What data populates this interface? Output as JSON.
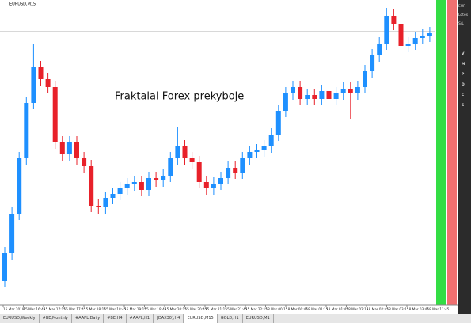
{
  "chart_data": {
    "type": "candlestick",
    "title": "EURUSD,M15",
    "annotation": "Fraktalai Forex prekyboje",
    "ylim": [
      15,
      400
    ],
    "level_line": 360,
    "up_color": "#1e90ff",
    "down_color": "#e8212a",
    "open": [
      45,
      80,
      130,
      200,
      270,
      315,
      300,
      290,
      220,
      205,
      220,
      200,
      190,
      140,
      138,
      150,
      155,
      162,
      167,
      170,
      160,
      175,
      172,
      178,
      200,
      215,
      200,
      195,
      170,
      162,
      168,
      175,
      188,
      182,
      200,
      208,
      210,
      215,
      230,
      260,
      282,
      290,
      275,
      280,
      275,
      285,
      275,
      282,
      288,
      282,
      290,
      310,
      330,
      345,
      380,
      370,
      342,
      345,
      352,
      355
    ],
    "high": [
      88,
      138,
      208,
      278,
      345,
      323,
      308,
      298,
      228,
      228,
      228,
      208,
      198,
      148,
      158,
      163,
      170,
      175,
      178,
      178,
      183,
      183,
      186,
      208,
      240,
      223,
      208,
      203,
      178,
      176,
      183,
      196,
      196,
      208,
      216,
      218,
      223,
      238,
      268,
      290,
      298,
      298,
      288,
      288,
      293,
      293,
      290,
      296,
      296,
      298,
      318,
      338,
      353,
      390,
      388,
      378,
      353,
      360,
      363,
      366
    ],
    "low": [
      37,
      72,
      122,
      192,
      262,
      292,
      282,
      212,
      197,
      197,
      192,
      182,
      132,
      130,
      130,
      142,
      147,
      154,
      159,
      152,
      152,
      164,
      164,
      170,
      192,
      192,
      187,
      162,
      154,
      154,
      160,
      167,
      174,
      174,
      192,
      200,
      202,
      207,
      222,
      252,
      274,
      267,
      267,
      267,
      267,
      267,
      267,
      274,
      250,
      274,
      282,
      302,
      322,
      337,
      362,
      334,
      334,
      337,
      344,
      347
    ],
    "close": [
      80,
      130,
      200,
      270,
      315,
      300,
      290,
      220,
      205,
      220,
      200,
      190,
      140,
      138,
      150,
      155,
      162,
      167,
      170,
      160,
      175,
      172,
      178,
      200,
      215,
      200,
      195,
      170,
      162,
      168,
      175,
      188,
      182,
      200,
      208,
      210,
      215,
      230,
      260,
      282,
      290,
      275,
      280,
      275,
      285,
      275,
      282,
      288,
      282,
      290,
      310,
      330,
      345,
      380,
      370,
      342,
      345,
      352,
      355,
      358
    ],
    "time_labels": [
      "15 Mar 2019",
      "15 Mar 16:45",
      "15 Mar 17:15",
      "15 Mar 17:45",
      "15 Mar 18:15",
      "15 Mar 18:45",
      "15 Mar 19:15",
      "15 Mar 19:45",
      "15 Mar 20:15",
      "15 Mar 20:45",
      "15 Mar 21:15",
      "15 Mar 21:45",
      "15 Mar 22:15",
      "18 Mar 00:15",
      "18 Mar 00:45",
      "18 Mar 01:15",
      "18 Mar 01:45",
      "18 Mar 02:15",
      "18 Mar 02:45",
      "18 Mar 03:15",
      "18 Mar 03:45",
      "18 Mar 11:45"
    ]
  },
  "side_panel": {
    "labels": [
      "EUR",
      "Lotes",
      "S/L"
    ],
    "items": [
      "V",
      "M",
      "P",
      "D",
      "C",
      "S"
    ]
  },
  "tabs": [
    "EURUSD,Weekly",
    "#BE,Monthly",
    "#AAPL,Daily",
    "#BE,H4",
    "#AAPL,H1",
    "[DAX30],H4",
    "EURUSD,M15",
    "GOLD,H1",
    "EURUSD,M1"
  ],
  "active_tab": 6
}
